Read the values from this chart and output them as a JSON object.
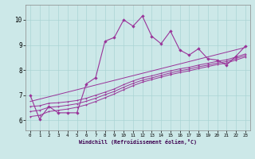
{
  "xlabel": "Windchill (Refroidissement éolien,°C)",
  "bg_color": "#cce8e8",
  "line_color": "#993399",
  "xlim": [
    -0.5,
    23.5
  ],
  "ylim": [
    5.6,
    10.6
  ],
  "xticks": [
    0,
    1,
    2,
    3,
    4,
    5,
    6,
    7,
    8,
    9,
    10,
    11,
    12,
    13,
    14,
    15,
    16,
    17,
    18,
    19,
    20,
    21,
    22,
    23
  ],
  "yticks": [
    6,
    7,
    8,
    9,
    10
  ],
  "main_x": [
    0,
    1,
    2,
    3,
    4,
    5,
    6,
    7,
    8,
    9,
    10,
    11,
    12,
    13,
    14,
    15,
    16,
    17,
    18,
    19,
    20,
    21,
    22,
    23
  ],
  "main_y": [
    7.0,
    6.05,
    6.55,
    6.3,
    6.3,
    6.3,
    7.45,
    7.7,
    9.15,
    9.3,
    10.0,
    9.75,
    10.15,
    9.35,
    9.05,
    9.55,
    8.8,
    8.6,
    8.85,
    8.45,
    8.4,
    8.2,
    8.55,
    8.95
  ],
  "trend1_x": [
    0,
    1,
    2,
    3,
    4,
    5,
    6,
    7,
    8,
    9,
    10,
    11,
    12,
    13,
    14,
    15,
    16,
    17,
    18,
    19,
    20,
    21,
    22,
    23
  ],
  "trend1_y": [
    6.15,
    6.2,
    6.35,
    6.4,
    6.45,
    6.52,
    6.62,
    6.75,
    6.9,
    7.05,
    7.22,
    7.38,
    7.52,
    7.62,
    7.72,
    7.82,
    7.9,
    7.97,
    8.06,
    8.14,
    8.22,
    8.28,
    8.4,
    8.52
  ],
  "trend2_x": [
    0,
    1,
    2,
    3,
    4,
    5,
    6,
    7,
    8,
    9,
    10,
    11,
    12,
    13,
    14,
    15,
    16,
    17,
    18,
    19,
    20,
    21,
    22,
    23
  ],
  "trend2_y": [
    6.35,
    6.4,
    6.52,
    6.55,
    6.6,
    6.66,
    6.76,
    6.88,
    7.02,
    7.15,
    7.32,
    7.47,
    7.6,
    7.69,
    7.79,
    7.89,
    7.97,
    8.04,
    8.13,
    8.2,
    8.28,
    8.34,
    8.46,
    8.58
  ],
  "trend3_x": [
    0,
    1,
    2,
    3,
    4,
    5,
    6,
    7,
    8,
    9,
    10,
    11,
    12,
    13,
    14,
    15,
    16,
    17,
    18,
    19,
    20,
    21,
    22,
    23
  ],
  "trend3_y": [
    6.55,
    6.58,
    6.68,
    6.7,
    6.74,
    6.79,
    6.88,
    7.0,
    7.12,
    7.25,
    7.42,
    7.57,
    7.69,
    7.77,
    7.87,
    7.97,
    8.05,
    8.11,
    8.2,
    8.27,
    8.35,
    8.41,
    8.52,
    8.64
  ],
  "trend4_x": [
    0,
    23
  ],
  "trend4_y": [
    6.75,
    8.9
  ]
}
